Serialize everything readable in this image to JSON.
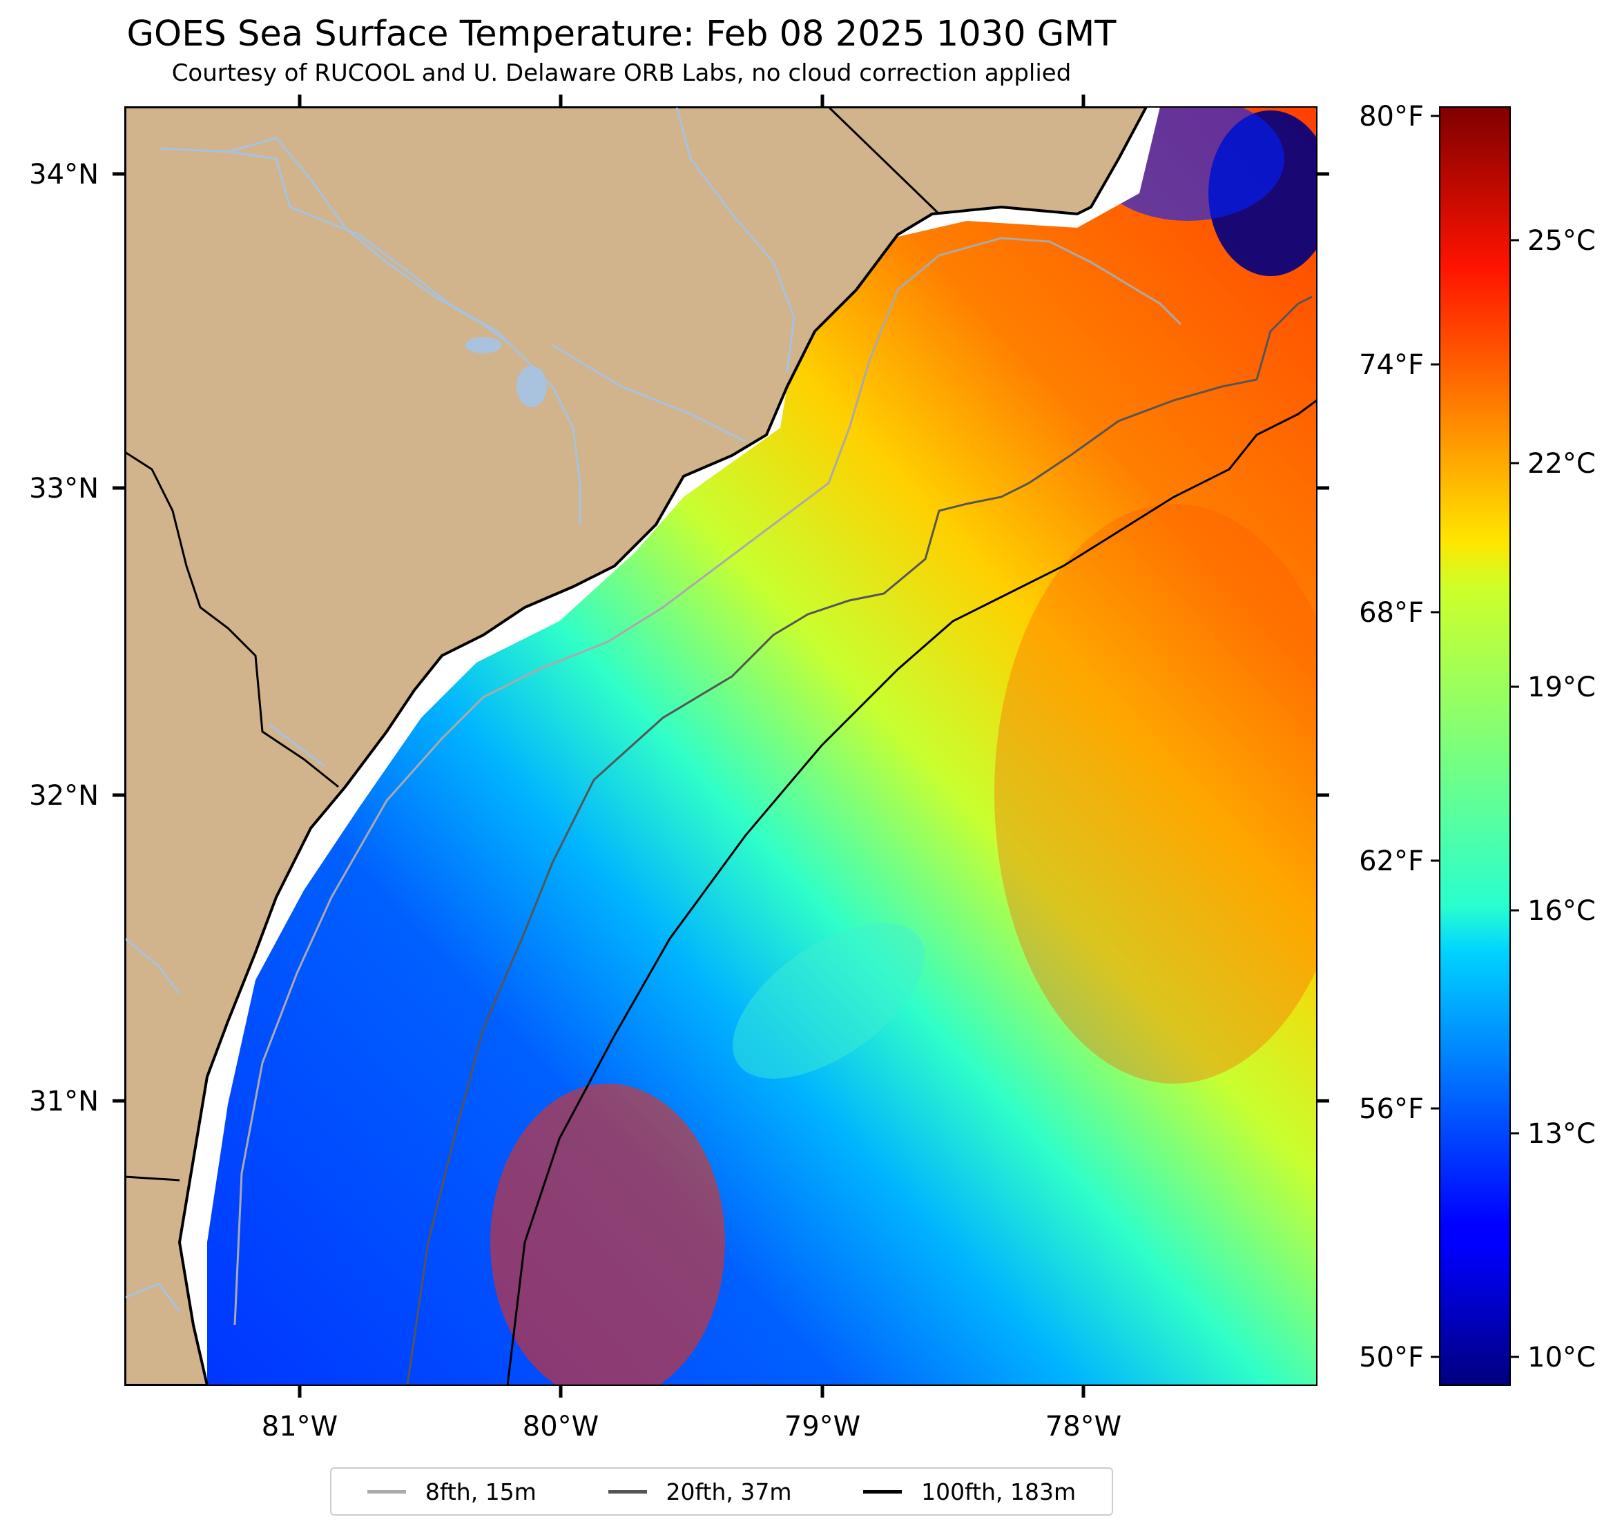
{
  "title": "GOES Sea Surface Temperature: Feb 08 2025 1030 GMT",
  "subtitle": "Courtesy of RUCOOL and U. Delaware ORB Labs, no cloud correction applied",
  "map": {
    "longitude_labels": [
      "81°W",
      "80°W",
      "79°W",
      "78°W"
    ],
    "latitude_labels": [
      "34°N",
      "33°N",
      "32°N",
      "31°N"
    ],
    "colors": {
      "land": "#d1b48c",
      "rivers": "#a9c2dd",
      "coast": "#000000",
      "gap": "#ffffff"
    }
  },
  "colorbar": {
    "fahrenheit_labels": [
      "80°F",
      "74°F",
      "68°F",
      "62°F",
      "56°F",
      "50°F"
    ],
    "celsius_labels": [
      "25°C",
      "22°C",
      "19°C",
      "16°C",
      "13°C",
      "10°C"
    ],
    "colormap": "jet",
    "range_celsius": [
      9.4,
      26.7
    ]
  },
  "legend": {
    "items": [
      {
        "label": "8fth, 15m",
        "color": "#aaaaaa"
      },
      {
        "label": "20fth, 37m",
        "color": "#555555"
      },
      {
        "label": "100fth, 183m",
        "color": "#000000"
      }
    ]
  }
}
